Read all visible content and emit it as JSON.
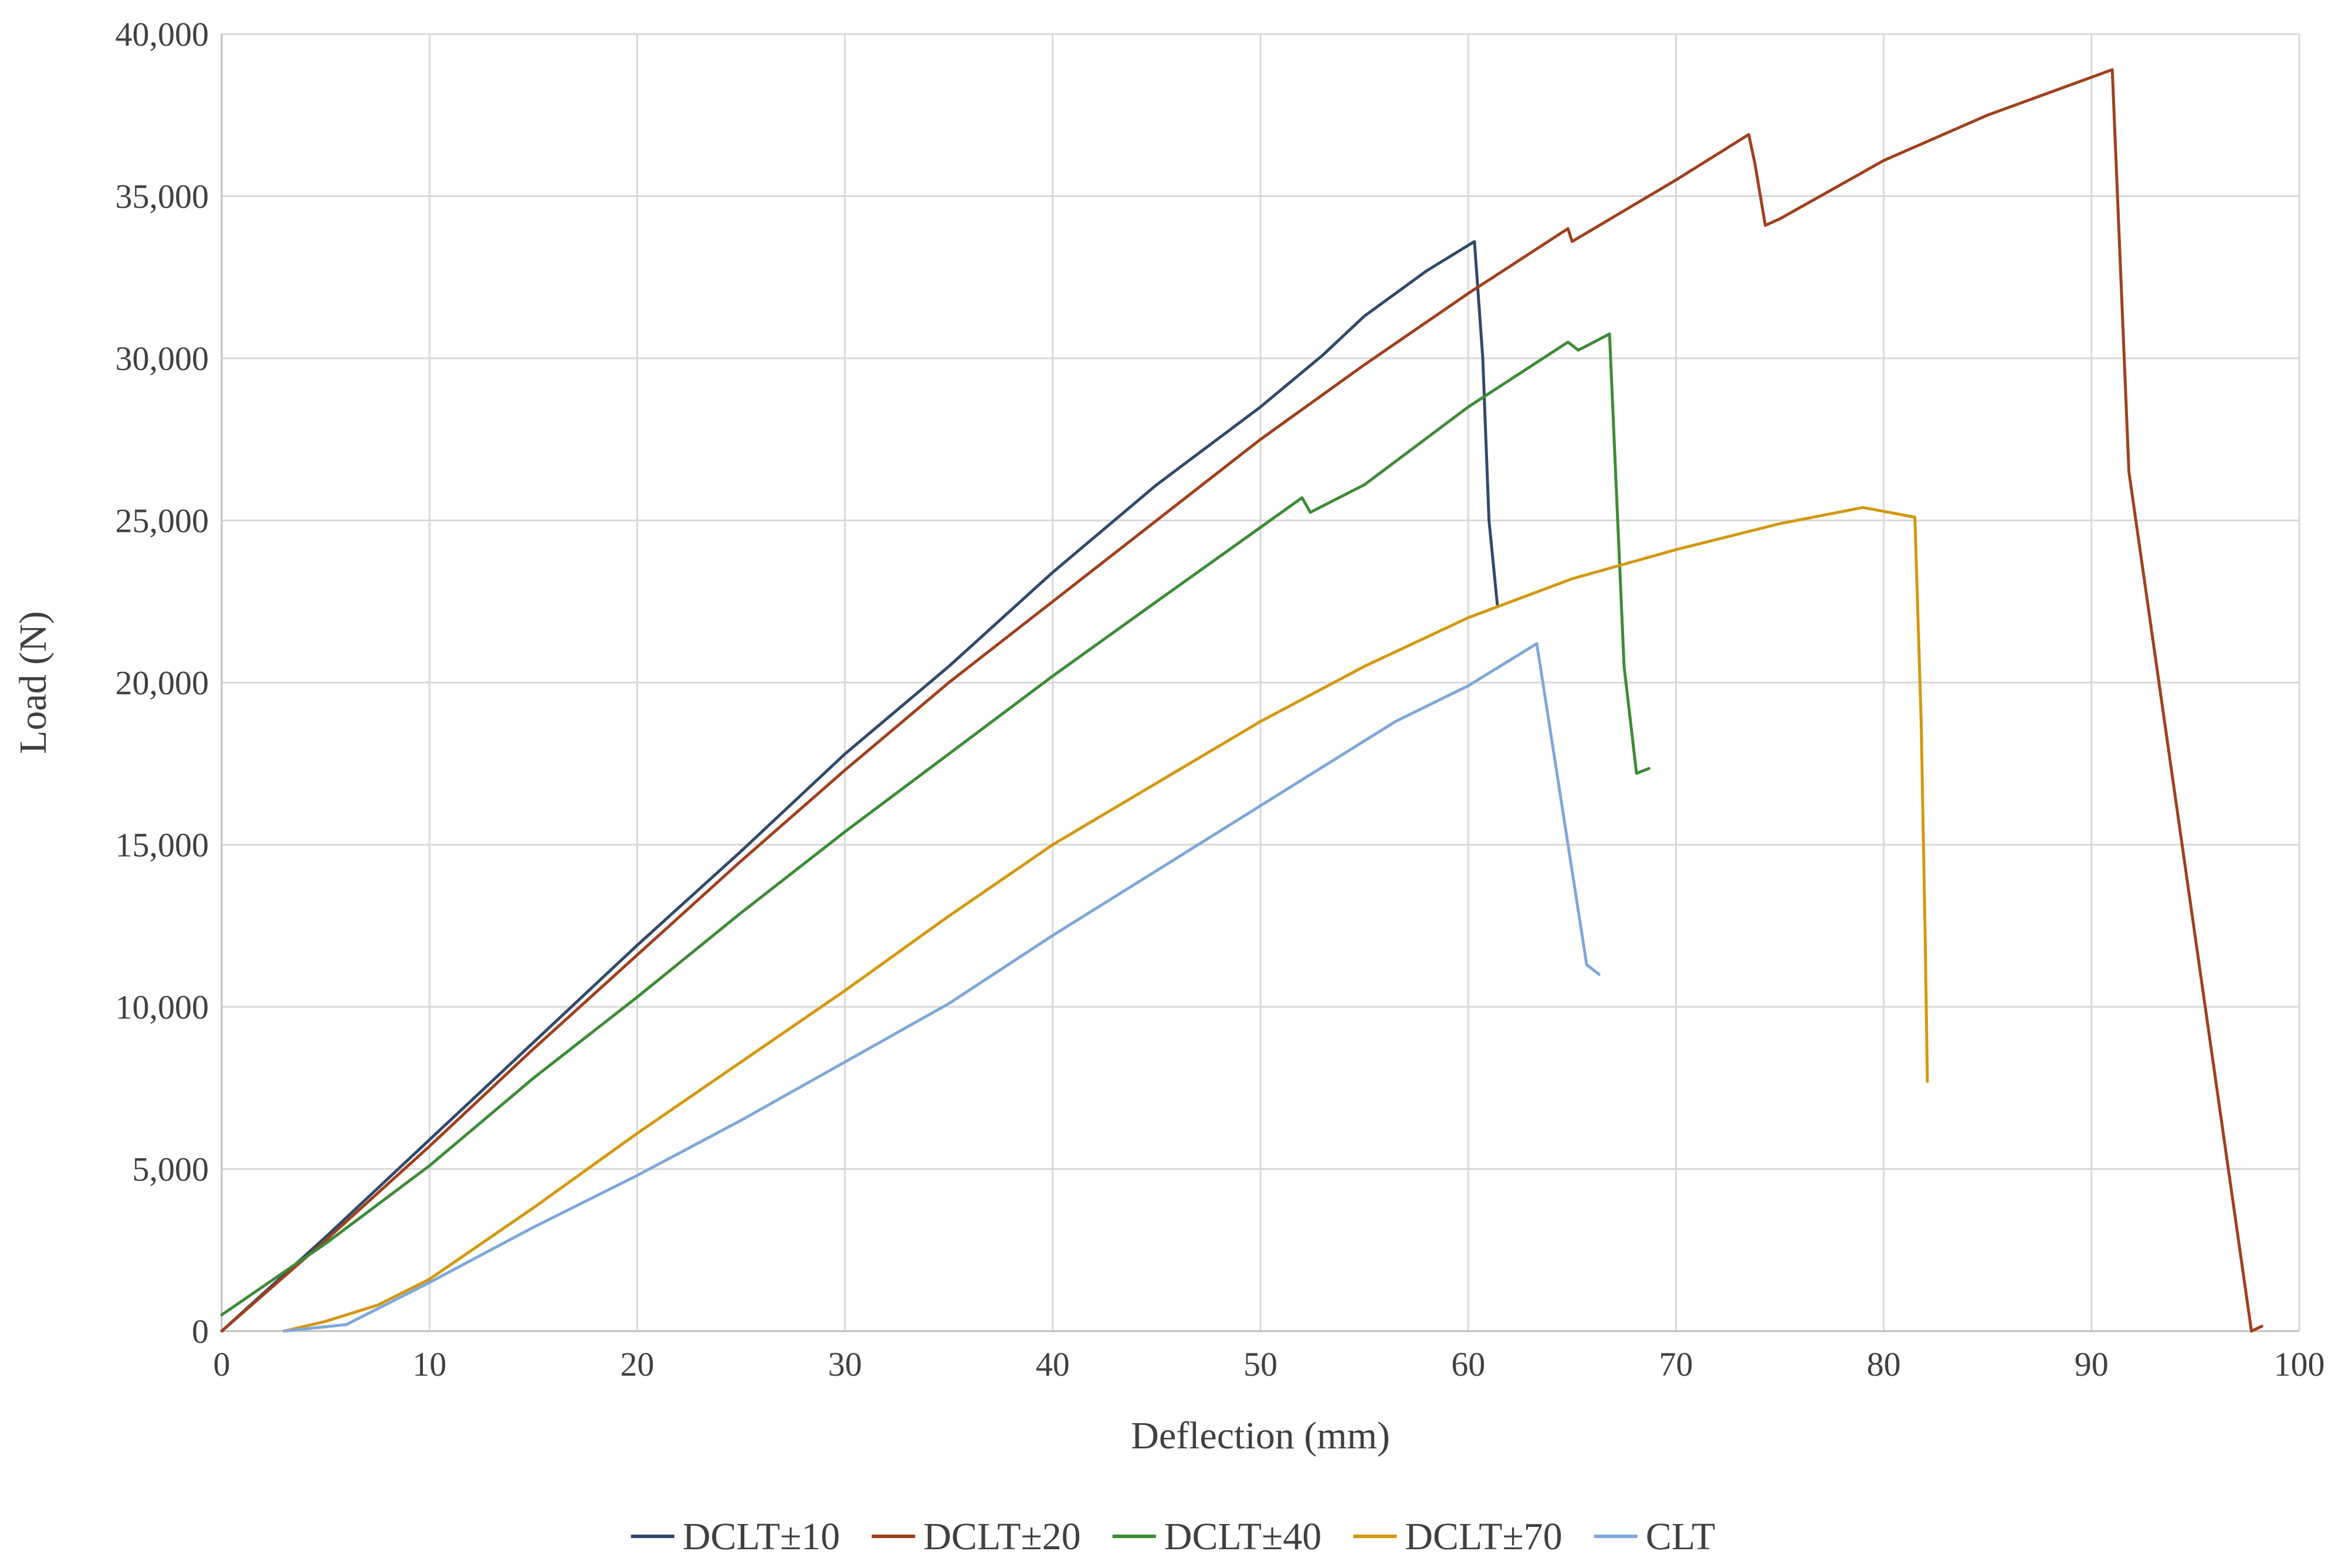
{
  "chart_data": {
    "type": "line",
    "title": "",
    "xlabel": "Deflection (mm)",
    "ylabel": "Load (N)",
    "xlim": [
      0,
      100
    ],
    "ylim": [
      0,
      40000
    ],
    "x_ticks": [
      0,
      10,
      20,
      30,
      40,
      50,
      60,
      70,
      80,
      90,
      100
    ],
    "y_ticks": [
      0,
      5000,
      10000,
      15000,
      20000,
      25000,
      30000,
      35000,
      40000
    ],
    "x_tick_labels": [
      "0",
      "10",
      "20",
      "30",
      "40",
      "50",
      "60",
      "70",
      "80",
      "90",
      "100"
    ],
    "y_tick_labels": [
      "0",
      "5,000",
      "10,000",
      "15,000",
      "20,000",
      "25,000",
      "30,000",
      "35,000",
      "40,000"
    ],
    "grid": true,
    "legend_position": "bottom",
    "series": [
      {
        "name": "DCLT±10",
        "color": "#2f4a6b",
        "points": [
          [
            0,
            0
          ],
          [
            5,
            2900
          ],
          [
            10,
            5900
          ],
          [
            15,
            8900
          ],
          [
            20,
            11900
          ],
          [
            25,
            14800
          ],
          [
            30,
            17800
          ],
          [
            35,
            20500
          ],
          [
            40,
            23400
          ],
          [
            45,
            26100
          ],
          [
            50,
            28500
          ],
          [
            53,
            30100
          ],
          [
            55,
            31300
          ],
          [
            58,
            32700
          ],
          [
            60.3,
            33600
          ],
          [
            60.7,
            30000
          ],
          [
            61.0,
            25000
          ],
          [
            61.4,
            22400
          ]
        ]
      },
      {
        "name": "DCLT±20",
        "color": "#a0401d",
        "points": [
          [
            0,
            0
          ],
          [
            5,
            2800
          ],
          [
            10,
            5700
          ],
          [
            15,
            8700
          ],
          [
            20,
            11600
          ],
          [
            25,
            14500
          ],
          [
            30,
            17300
          ],
          [
            35,
            20000
          ],
          [
            40,
            22500
          ],
          [
            45,
            25000
          ],
          [
            50,
            27500
          ],
          [
            55,
            29800
          ],
          [
            60,
            32000
          ],
          [
            64.8,
            34000
          ],
          [
            65,
            33600
          ],
          [
            70,
            35500
          ],
          [
            73.5,
            36900
          ],
          [
            73.8,
            36000
          ],
          [
            74.3,
            34100
          ],
          [
            75,
            34300
          ],
          [
            80,
            36100
          ],
          [
            85,
            37500
          ],
          [
            91,
            38900
          ],
          [
            91.8,
            26500
          ],
          [
            97.7,
            0
          ],
          [
            98.2,
            150
          ]
        ]
      },
      {
        "name": "DCLT±40",
        "color": "#3d8b37",
        "points": [
          [
            0,
            500
          ],
          [
            5,
            2700
          ],
          [
            10,
            5100
          ],
          [
            15,
            7800
          ],
          [
            20,
            10300
          ],
          [
            25,
            12900
          ],
          [
            30,
            15400
          ],
          [
            35,
            17800
          ],
          [
            40,
            20200
          ],
          [
            45,
            22500
          ],
          [
            52,
            25700
          ],
          [
            52.4,
            25250
          ],
          [
            55,
            26100
          ],
          [
            60,
            28500
          ],
          [
            64.8,
            30500
          ],
          [
            65.3,
            30250
          ],
          [
            66.8,
            30750
          ],
          [
            67.5,
            20500
          ],
          [
            68.1,
            17200
          ],
          [
            68.7,
            17350
          ]
        ]
      },
      {
        "name": "DCLT±70",
        "color": "#d4980f",
        "points": [
          [
            3,
            0
          ],
          [
            5,
            300
          ],
          [
            7.5,
            800
          ],
          [
            10,
            1600
          ],
          [
            15,
            3800
          ],
          [
            20,
            6100
          ],
          [
            25,
            8300
          ],
          [
            30,
            10500
          ],
          [
            35,
            12800
          ],
          [
            40,
            15000
          ],
          [
            45,
            16900
          ],
          [
            50,
            18800
          ],
          [
            55,
            20500
          ],
          [
            60,
            22000
          ],
          [
            65,
            23200
          ],
          [
            70,
            24100
          ],
          [
            75,
            24900
          ],
          [
            79,
            25400
          ],
          [
            81.5,
            25100
          ],
          [
            81.8,
            18800
          ],
          [
            82.0,
            12000
          ],
          [
            82.1,
            7700
          ]
        ]
      },
      {
        "name": "CLT",
        "color": "#7fa7d9",
        "points": [
          [
            3,
            0
          ],
          [
            6,
            200
          ],
          [
            10,
            1500
          ],
          [
            15,
            3200
          ],
          [
            20,
            4800
          ],
          [
            25,
            6500
          ],
          [
            30,
            8300
          ],
          [
            35,
            10100
          ],
          [
            40,
            12200
          ],
          [
            45,
            14200
          ],
          [
            50,
            16200
          ],
          [
            55,
            18200
          ],
          [
            56.5,
            18800
          ],
          [
            60,
            19900
          ],
          [
            63.3,
            21200
          ],
          [
            65.7,
            11300
          ],
          [
            66.3,
            11000
          ]
        ]
      }
    ]
  }
}
